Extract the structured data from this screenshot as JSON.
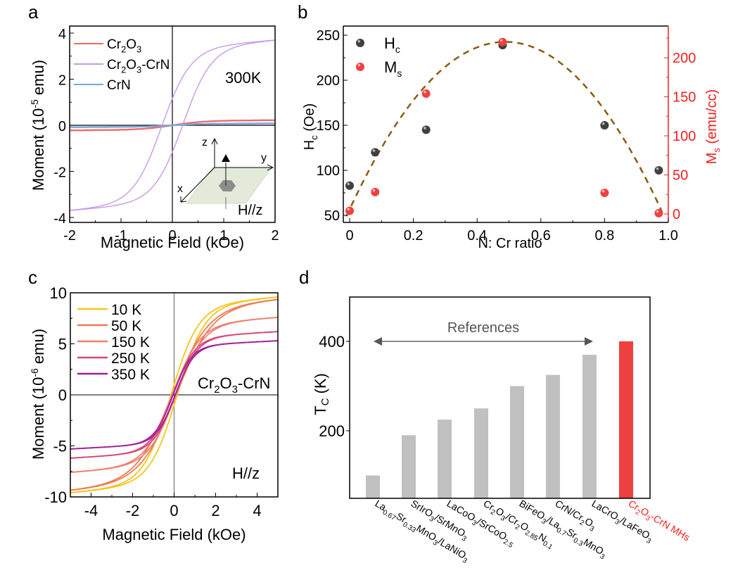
{
  "figure": {
    "panel_labels": [
      "a",
      "b",
      "c",
      "d"
    ]
  },
  "chart_data": [
    {
      "panel": "a",
      "type": "line",
      "title": "",
      "xlabel": "Magnetic Field (kOe)",
      "ylabel": "Moment (10^-5 emu)",
      "ylabel_parts": {
        "main": "Moment (10",
        "sup": "-5",
        "tail": " emu)"
      },
      "xlim": [
        -2,
        2
      ],
      "ylim": [
        -4.2,
        4.2
      ],
      "xticks": [
        -2,
        -1,
        0,
        1,
        2
      ],
      "yticks": [
        -4,
        -2,
        0,
        2,
        4
      ],
      "xtick_labels": [
        "-2",
        "-1",
        "0",
        "1",
        "2"
      ],
      "ytick_labels": [
        "-4",
        "-2",
        "0",
        "2",
        "4"
      ],
      "annotation": "300K",
      "inset_label": "H//z",
      "inset_axes": [
        "x",
        "y",
        "z"
      ],
      "legend_position": "top-left",
      "series": [
        {
          "name": "Cr2O3",
          "label_parts": [
            "Cr",
            "2",
            "O",
            "3",
            ""
          ],
          "color": "#f06a6a",
          "Ms": 0.22,
          "Hc": 0.0,
          "width": 0.6
        },
        {
          "name": "Cr2O3-CrN",
          "label_parts": [
            "Cr",
            "2",
            "O",
            "3",
            "-CrN"
          ],
          "color": "#c79ae8",
          "Ms": 3.7,
          "Hc": 0.2,
          "width": 0.55
        },
        {
          "name": "CrN",
          "label_parts": [
            "CrN",
            "",
            "",
            "",
            ""
          ],
          "color": "#7aa6d8",
          "Ms": 0.08,
          "Hc": 0.0,
          "width": 0.6
        }
      ]
    },
    {
      "panel": "b",
      "type": "scatter",
      "xlabel": "N: Cr ratio",
      "ylabel_left": "Hc (Oe)",
      "ylabel_right": "Ms (emu/cc)",
      "xlim": [
        -0.02,
        1.0
      ],
      "ylim_left": [
        40,
        260
      ],
      "ylim_right": [
        -10,
        235
      ],
      "xticks": [
        0,
        0.2,
        0.4,
        0.6,
        0.8,
        1.0
      ],
      "xtick_labels": [
        "0",
        "0.2",
        "0.4",
        "0.6",
        "0.8",
        "1.0"
      ],
      "yticks_left": [
        50,
        100,
        150,
        200,
        250
      ],
      "yticks_right": [
        0,
        50,
        100,
        150,
        200
      ],
      "legend_position": "top-left",
      "right_axis_color": "#f02020",
      "fit_color": "#8a5a10",
      "series": [
        {
          "name": "Hc",
          "axis": "left",
          "color": "#404040",
          "x": [
            0,
            0.08,
            0.24,
            0.48,
            0.8,
            0.97
          ],
          "y": [
            83,
            120,
            145,
            239,
            150,
            100
          ]
        },
        {
          "name": "Ms",
          "axis": "right",
          "color": "#f04040",
          "x": [
            0,
            0.08,
            0.24,
            0.48,
            0.8,
            0.97
          ],
          "y": [
            4,
            28,
            154,
            220,
            27,
            1
          ]
        }
      ],
      "fit": {
        "axis": "right",
        "type": "parabola",
        "x": [
          -0.01,
          0.47,
          0.98
        ],
        "y": [
          -3,
          220,
          3
        ]
      }
    },
    {
      "panel": "c",
      "type": "line",
      "xlabel": "Magnetic Field (kOe)",
      "ylabel": "Moment (10^-6 emu)",
      "ylabel_parts": {
        "main": "Moment (10",
        "sup": "-6",
        "tail": " emu)"
      },
      "xlim": [
        -5,
        5
      ],
      "ylim": [
        -10,
        10
      ],
      "xticks": [
        -4,
        -2,
        0,
        2,
        4
      ],
      "yticks": [
        -10,
        -5,
        0,
        5,
        10
      ],
      "xtick_labels": [
        "-4",
        "-2",
        "0",
        "2",
        "4"
      ],
      "ytick_labels": [
        "-10",
        "-5",
        "0",
        "5",
        "10"
      ],
      "annotation": "Cr2O3-CrN",
      "annotation_parts": [
        "Cr",
        "2",
        "O",
        "3",
        "-CrN"
      ],
      "inset_label": "H//z",
      "legend_position": "top-left",
      "series": [
        {
          "name": "10 K",
          "color": "#f5c518",
          "Ms": 9.6,
          "Hc": 0.15,
          "width": 1.3
        },
        {
          "name": "50 K",
          "color": "#ef7a50",
          "Ms": 9.4,
          "Hc": 0.1,
          "width": 1.7
        },
        {
          "name": "150 K",
          "color": "#f08070",
          "Ms": 7.6,
          "Hc": 0.08,
          "width": 1.3
        },
        {
          "name": "250 K",
          "color": "#d84878",
          "Ms": 6.2,
          "Hc": 0.06,
          "width": 1.05
        },
        {
          "name": "350 K",
          "color": "#a020a0",
          "Ms": 5.3,
          "Hc": 0.05,
          "width": 0.9
        }
      ]
    },
    {
      "panel": "d",
      "type": "bar",
      "ylabel": "TC (K)",
      "ylim": [
        50,
        520
      ],
      "yticks": [
        200,
        400
      ],
      "ytick_labels": [
        "200",
        "400"
      ],
      "annotation": "References",
      "categories": [
        "La0.67Sr0.33MnO3/LaNiO3",
        "SrIrO3/SrMnO3",
        "LaCoO3/SrCoO2.5",
        "Cr2O3/Cr2O2.85N0.1",
        "BiFeO3/La0.7Sr0.3MnO3",
        "CrN/Cr2O3",
        "LaCrO3/LaFeO3",
        "Cr2O3-CrN MHs"
      ],
      "values": [
        100,
        190,
        225,
        250,
        300,
        325,
        370,
        400
      ],
      "colors": [
        "#c0c0c0",
        "#c0c0c0",
        "#c0c0c0",
        "#c0c0c0",
        "#c0c0c0",
        "#c0c0c0",
        "#c0c0c0",
        "#ef4040"
      ],
      "label_colors": [
        "#000",
        "#000",
        "#000",
        "#000",
        "#000",
        "#000",
        "#000",
        "#ff1a1a"
      ]
    }
  ]
}
